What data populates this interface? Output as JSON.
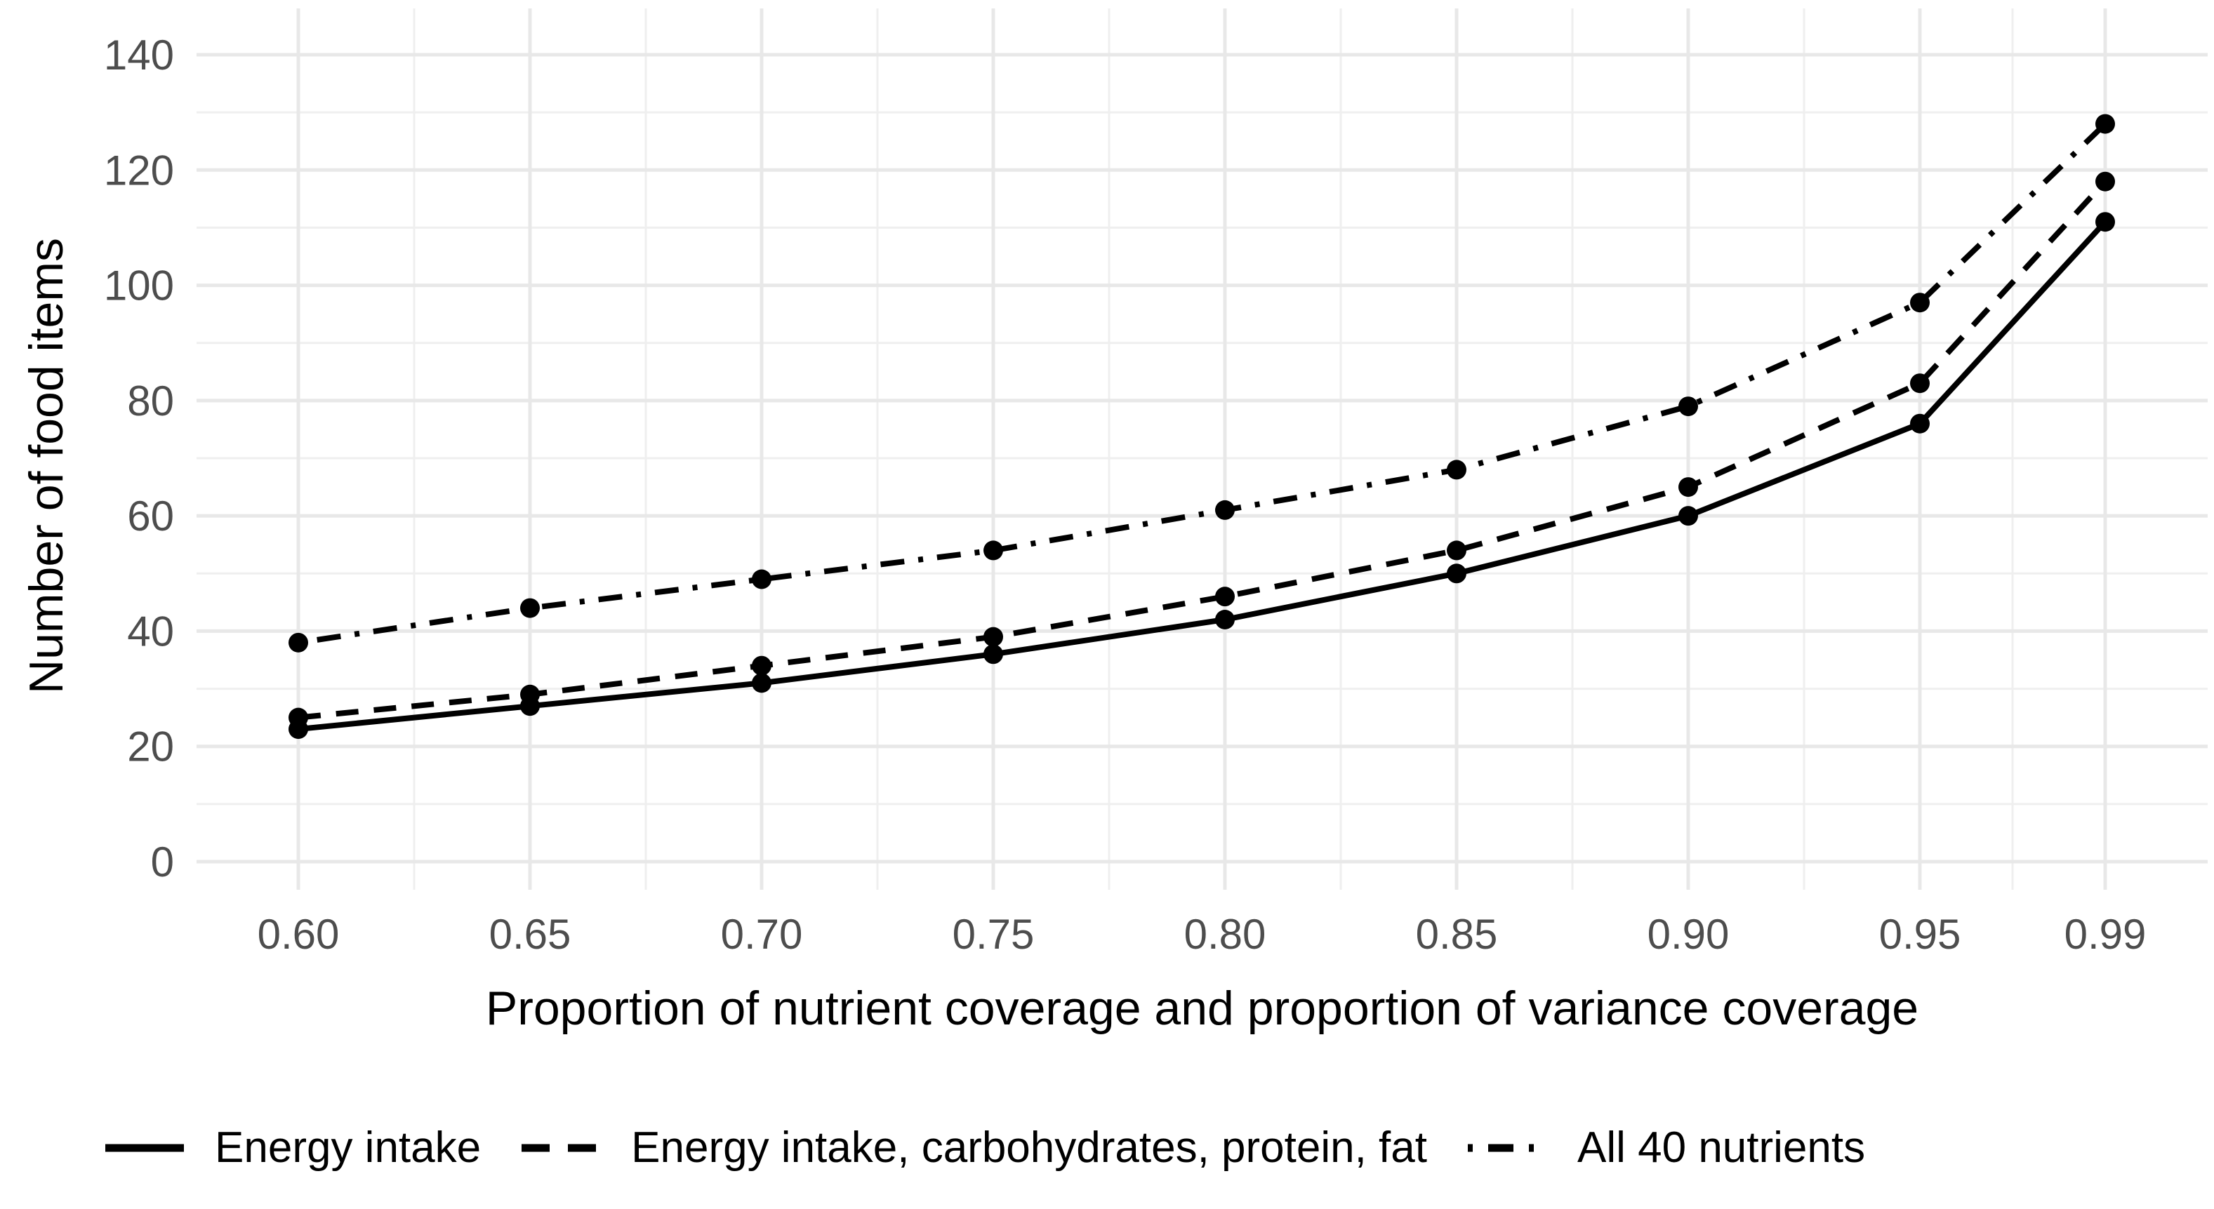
{
  "chart_data": {
    "type": "line",
    "title": "",
    "xlabel": "Proportion of nutrient coverage and proportion of variance coverage",
    "ylabel": "Number of food items",
    "x": [
      0.6,
      0.65,
      0.7,
      0.75,
      0.8,
      0.85,
      0.9,
      0.95,
      0.99
    ],
    "x_tick_labels": [
      "0.60",
      "0.65",
      "0.70",
      "0.75",
      "0.80",
      "0.85",
      "0.90",
      "0.95",
      "0.99"
    ],
    "x_minor_ticks": [
      0.625,
      0.675,
      0.725,
      0.775,
      0.825,
      0.875,
      0.925,
      0.97
    ],
    "y_ticks": [
      0,
      20,
      40,
      60,
      80,
      100,
      120,
      140
    ],
    "y_tick_labels": [
      "0",
      "20",
      "40",
      "60",
      "80",
      "100",
      "120",
      "140"
    ],
    "y_minor_ticks": [
      10,
      30,
      50,
      70,
      90,
      110,
      130
    ],
    "xlim": [
      0.578,
      1.0114
    ],
    "ylim": [
      0,
      147
    ],
    "grid": true,
    "legend_position": "bottom",
    "series": [
      {
        "name": "Energy intake",
        "style": "solid",
        "values": [
          23,
          27,
          31,
          36,
          42,
          50,
          60,
          76,
          111
        ]
      },
      {
        "name": "Energy intake, carbohydrates, protein, fat",
        "style": "dashed",
        "values": [
          25,
          29,
          34,
          39,
          46,
          54,
          65,
          83,
          118
        ]
      },
      {
        "name": "All 40 nutrients",
        "style": "dashdot",
        "values": [
          38,
          44,
          49,
          54,
          61,
          68,
          79,
          97,
          128
        ]
      }
    ],
    "colors": {
      "line": "#000000",
      "grid_major": "#e8e8e8",
      "grid_minor": "#efefef",
      "tick_text": "#4d4d4d",
      "background": "#ffffff"
    }
  }
}
